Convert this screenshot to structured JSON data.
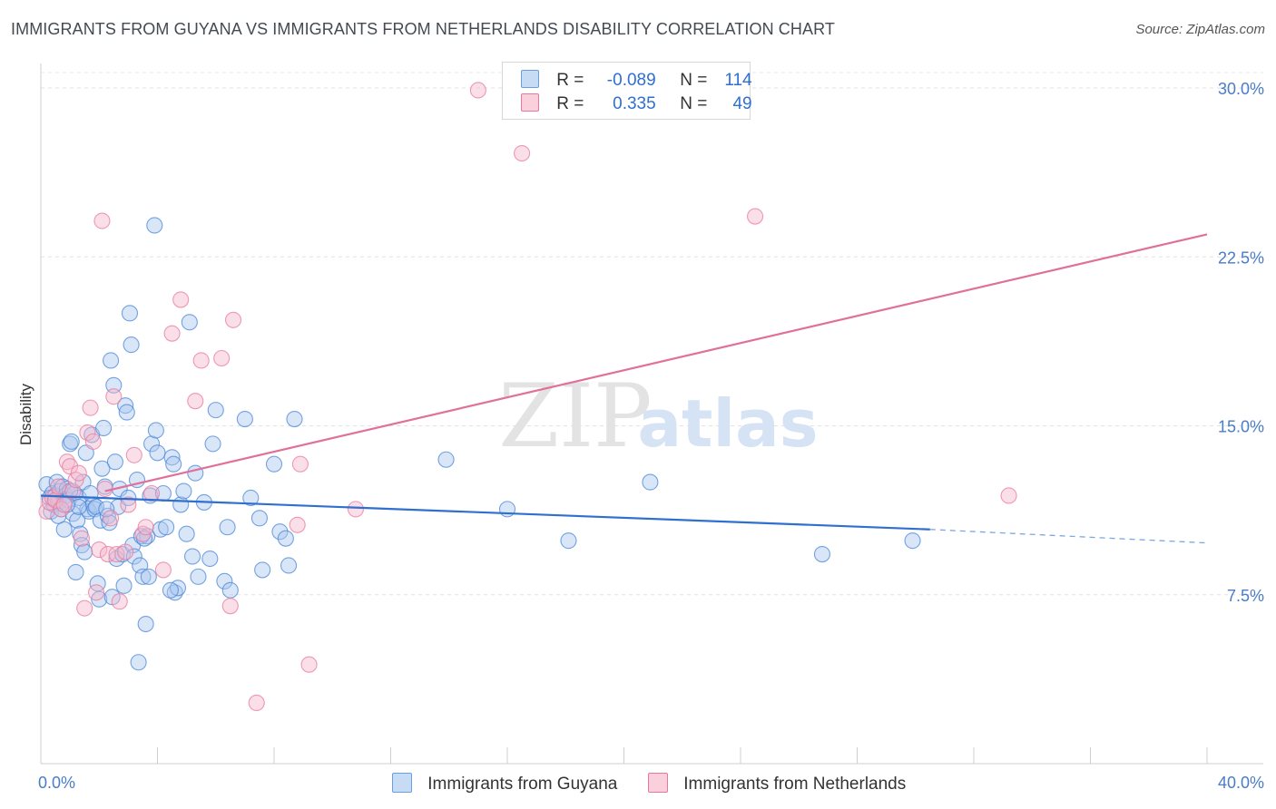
{
  "title": "IMMIGRANTS FROM GUYANA VS IMMIGRANTS FROM NETHERLANDS DISABILITY CORRELATION CHART",
  "source": "Source: ZipAtlas.com",
  "watermark": {
    "zip": "ZIP",
    "atlas": "atlas"
  },
  "legend": {
    "rows": [
      {
        "r_label": "R =",
        "r_value": "-0.089",
        "n_label": "N =",
        "n_value": "114",
        "color": "#aac8f0"
      },
      {
        "r_label": "R =",
        "r_value": "0.335",
        "n_label": "N =",
        "n_value": "49",
        "color": "#f5b8cb"
      }
    ]
  },
  "bottom_legend": [
    {
      "label": "Immigrants from Guyana",
      "color": "#aac8f0"
    },
    {
      "label": "Immigrants from Netherlands",
      "color": "#f5b8cb"
    }
  ],
  "chart_data": {
    "type": "scatter",
    "title": "IMMIGRANTS FROM GUYANA VS IMMIGRANTS FROM NETHERLANDS DISABILITY CORRELATION CHART",
    "xlabel": "",
    "ylabel": "Disability",
    "xlim": [
      0,
      40
    ],
    "ylim": [
      0,
      31
    ],
    "x_tick_labels": [
      "0.0%",
      "40.0%"
    ],
    "y_ticks": [
      7.5,
      15.0,
      22.5,
      30.0
    ],
    "y_tick_labels": [
      "7.5%",
      "15.0%",
      "22.5%",
      "30.0%"
    ],
    "grid": true,
    "legend_position": "top-center",
    "series": [
      {
        "name": "Immigrants from Guyana",
        "color": "#4a86d8",
        "fill": "#aac8f0",
        "trend": {
          "x": [
            0,
            30.5
          ],
          "y": [
            11.9,
            10.4
          ]
        },
        "trend_dashed": {
          "x": [
            30.5,
            40
          ],
          "y": [
            10.4,
            9.8
          ]
        },
        "points": [
          [
            0.2,
            12.4
          ],
          [
            0.3,
            11.8
          ],
          [
            0.35,
            11.2
          ],
          [
            0.4,
            12.0
          ],
          [
            0.45,
            11.5
          ],
          [
            0.5,
            11.9
          ],
          [
            0.55,
            12.5
          ],
          [
            0.6,
            11.6
          ],
          [
            0.65,
            12.1
          ],
          [
            0.7,
            11.3
          ],
          [
            0.75,
            12.3
          ],
          [
            0.8,
            10.4
          ],
          [
            0.85,
            11.9
          ],
          [
            0.9,
            12.2
          ],
          [
            0.95,
            11.7
          ],
          [
            1.0,
            14.2
          ],
          [
            1.05,
            14.3
          ],
          [
            1.1,
            11.1
          ],
          [
            1.15,
            12.0
          ],
          [
            1.2,
            8.5
          ],
          [
            1.25,
            10.8
          ],
          [
            1.3,
            11.8
          ],
          [
            1.35,
            10.2
          ],
          [
            1.4,
            9.7
          ],
          [
            1.45,
            12.5
          ],
          [
            1.5,
            9.4
          ],
          [
            1.55,
            13.8
          ],
          [
            1.6,
            11.3
          ],
          [
            1.65,
            11.2
          ],
          [
            1.7,
            12.0
          ],
          [
            1.75,
            14.6
          ],
          [
            1.8,
            11.5
          ],
          [
            1.85,
            11.3
          ],
          [
            1.9,
            11.4
          ],
          [
            1.95,
            8.0
          ],
          [
            2.0,
            7.3
          ],
          [
            2.05,
            10.8
          ],
          [
            2.1,
            13.1
          ],
          [
            2.15,
            14.9
          ],
          [
            2.2,
            12.3
          ],
          [
            2.3,
            11.0
          ],
          [
            2.35,
            10.7
          ],
          [
            2.4,
            17.9
          ],
          [
            2.45,
            7.4
          ],
          [
            2.5,
            16.8
          ],
          [
            2.55,
            13.4
          ],
          [
            2.6,
            9.1
          ],
          [
            2.65,
            11.4
          ],
          [
            2.7,
            12.2
          ],
          [
            2.8,
            9.3
          ],
          [
            2.85,
            7.9
          ],
          [
            2.9,
            15.9
          ],
          [
            2.95,
            15.6
          ],
          [
            3.0,
            11.8
          ],
          [
            3.05,
            20.0
          ],
          [
            3.1,
            18.6
          ],
          [
            3.15,
            9.7
          ],
          [
            3.2,
            9.2
          ],
          [
            3.3,
            12.6
          ],
          [
            3.35,
            4.5
          ],
          [
            3.4,
            8.8
          ],
          [
            3.45,
            10.1
          ],
          [
            3.5,
            8.3
          ],
          [
            3.6,
            6.2
          ],
          [
            3.65,
            10.1
          ],
          [
            3.7,
            8.3
          ],
          [
            3.75,
            11.9
          ],
          [
            3.8,
            14.2
          ],
          [
            3.9,
            23.9
          ],
          [
            3.95,
            14.8
          ],
          [
            4.0,
            13.8
          ],
          [
            4.1,
            10.4
          ],
          [
            4.2,
            12.0
          ],
          [
            4.3,
            10.5
          ],
          [
            4.5,
            13.6
          ],
          [
            4.55,
            13.3
          ],
          [
            4.6,
            7.6
          ],
          [
            4.7,
            7.8
          ],
          [
            4.8,
            11.5
          ],
          [
            4.9,
            12.1
          ],
          [
            5.0,
            10.2
          ],
          [
            5.1,
            19.6
          ],
          [
            5.2,
            9.2
          ],
          [
            5.3,
            12.9
          ],
          [
            5.4,
            8.3
          ],
          [
            5.6,
            11.6
          ],
          [
            5.8,
            9.1
          ],
          [
            5.9,
            14.2
          ],
          [
            6.0,
            15.7
          ],
          [
            6.3,
            8.1
          ],
          [
            6.4,
            10.5
          ],
          [
            6.5,
            7.7
          ],
          [
            7.0,
            15.3
          ],
          [
            7.2,
            11.8
          ],
          [
            7.5,
            10.9
          ],
          [
            7.6,
            8.6
          ],
          [
            8.0,
            13.3
          ],
          [
            8.2,
            10.3
          ],
          [
            8.4,
            10.0
          ],
          [
            8.5,
            8.8
          ],
          [
            8.7,
            15.3
          ],
          [
            13.9,
            13.5
          ],
          [
            16.0,
            11.3
          ],
          [
            18.1,
            9.9
          ],
          [
            20.9,
            12.5
          ],
          [
            26.8,
            9.3
          ],
          [
            29.9,
            9.9
          ],
          [
            1.3,
            11.4
          ],
          [
            0.6,
            11.0
          ],
          [
            2.25,
            11.3
          ],
          [
            3.55,
            10.0
          ],
          [
            4.45,
            7.7
          ],
          [
            1.0,
            12.1
          ],
          [
            0.9,
            11.5
          ]
        ]
      },
      {
        "name": "Immigrants from Netherlands",
        "color": "#e8799d",
        "fill": "#f5b8cb",
        "trend": {
          "x": [
            2.2,
            40
          ],
          "y": [
            12.1,
            23.5
          ]
        },
        "points": [
          [
            0.2,
            11.2
          ],
          [
            0.3,
            11.6
          ],
          [
            0.4,
            11.8
          ],
          [
            0.5,
            11.7
          ],
          [
            0.6,
            12.3
          ],
          [
            0.7,
            11.3
          ],
          [
            0.8,
            11.5
          ],
          [
            0.9,
            13.4
          ],
          [
            1.0,
            13.2
          ],
          [
            1.1,
            12.1
          ],
          [
            1.2,
            12.6
          ],
          [
            1.3,
            12.9
          ],
          [
            1.4,
            10.0
          ],
          [
            1.5,
            6.9
          ],
          [
            1.6,
            14.7
          ],
          [
            1.7,
            15.8
          ],
          [
            1.8,
            14.3
          ],
          [
            1.9,
            7.6
          ],
          [
            2.0,
            9.5
          ],
          [
            2.1,
            24.1
          ],
          [
            2.2,
            12.2
          ],
          [
            2.3,
            9.3
          ],
          [
            2.4,
            10.9
          ],
          [
            2.5,
            16.3
          ],
          [
            2.6,
            9.3
          ],
          [
            2.7,
            7.2
          ],
          [
            2.9,
            9.4
          ],
          [
            3.0,
            11.5
          ],
          [
            3.2,
            13.7
          ],
          [
            3.5,
            10.2
          ],
          [
            3.6,
            10.5
          ],
          [
            3.8,
            12.0
          ],
          [
            4.2,
            8.6
          ],
          [
            4.5,
            19.1
          ],
          [
            4.8,
            20.6
          ],
          [
            5.3,
            16.1
          ],
          [
            5.5,
            17.9
          ],
          [
            6.2,
            18.0
          ],
          [
            6.6,
            19.7
          ],
          [
            6.5,
            7.0
          ],
          [
            7.4,
            2.7
          ],
          [
            8.8,
            10.6
          ],
          [
            8.9,
            13.3
          ],
          [
            9.2,
            4.4
          ],
          [
            10.8,
            11.3
          ],
          [
            15.0,
            29.9
          ],
          [
            16.5,
            27.1
          ],
          [
            24.5,
            24.3
          ],
          [
            33.2,
            11.9
          ]
        ]
      }
    ]
  }
}
